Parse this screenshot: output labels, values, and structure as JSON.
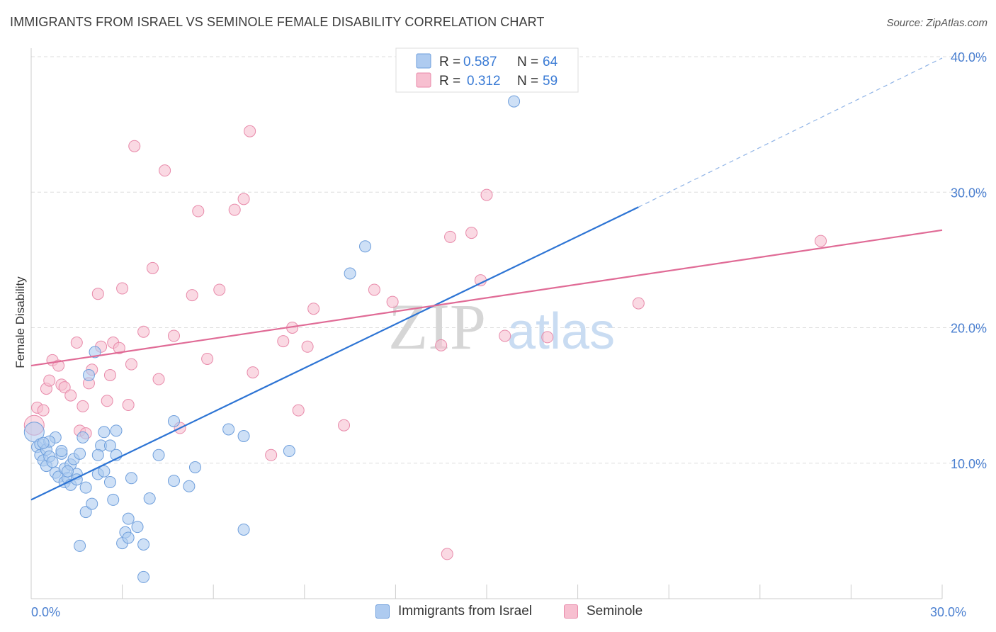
{
  "header": {
    "title": "IMMIGRANTS FROM ISRAEL VS SEMINOLE FEMALE DISABILITY CORRELATION CHART",
    "source": "Source: ZipAtlas.com"
  },
  "watermark": {
    "zip": "ZIP",
    "atlas": "atlas"
  },
  "colors": {
    "blue_fill": "#aecbf0",
    "blue_stroke": "#6f9fdc",
    "blue_line": "#2d74d4",
    "pink_fill": "#f7bfd0",
    "pink_stroke": "#e88aaa",
    "pink_line": "#e06b96",
    "axis_text": "#4a7fd0",
    "grid": "#dddddd"
  },
  "legend_top": {
    "rows": [
      {
        "r_label": "R =",
        "r_value": "0.587",
        "n_label": "N =",
        "n_value": "64"
      },
      {
        "r_label": "R =",
        "r_value": "0.312",
        "n_label": "N =",
        "n_value": "59"
      }
    ]
  },
  "chart_data": {
    "type": "scatter",
    "xlabel": "",
    "ylabel": "Female Disability",
    "xlim": [
      0,
      30
    ],
    "ylim": [
      0,
      40
    ],
    "x_tick_labels": [
      {
        "value": 0,
        "label": "0.0%"
      },
      {
        "value": 30,
        "label": "30.0%"
      }
    ],
    "y_tick_labels": [
      {
        "value": 10,
        "label": "10.0%"
      },
      {
        "value": 20,
        "label": "20.0%"
      },
      {
        "value": 30,
        "label": "30.0%"
      },
      {
        "value": 40,
        "label": "40.0%"
      }
    ],
    "grid": true,
    "legend_position": "top-center",
    "series": [
      {
        "name": "Immigrants from Israel",
        "color": "#aecbf0",
        "trend": {
          "x": [
            0,
            20
          ],
          "y": [
            7.3,
            28.9
          ],
          "dashed_to": {
            "x": 30,
            "y": 39.9
          }
        },
        "points": [
          [
            0.1,
            12.3
          ],
          [
            0.2,
            11.2
          ],
          [
            0.3,
            11.4
          ],
          [
            0.3,
            10.6
          ],
          [
            0.4,
            10.2
          ],
          [
            0.5,
            9.8
          ],
          [
            0.5,
            11.0
          ],
          [
            0.6,
            10.5
          ],
          [
            0.7,
            10.1
          ],
          [
            0.8,
            9.3
          ],
          [
            0.8,
            11.9
          ],
          [
            0.9,
            9.0
          ],
          [
            1.0,
            10.7
          ],
          [
            1.1,
            9.6
          ],
          [
            1.1,
            8.6
          ],
          [
            1.2,
            8.9
          ],
          [
            1.3,
            9.9
          ],
          [
            1.3,
            8.4
          ],
          [
            1.4,
            10.3
          ],
          [
            1.5,
            9.2
          ],
          [
            1.5,
            8.8
          ],
          [
            1.6,
            10.7
          ],
          [
            1.7,
            11.9
          ],
          [
            1.8,
            8.2
          ],
          [
            1.8,
            6.4
          ],
          [
            1.9,
            16.5
          ],
          [
            2.0,
            7.0
          ],
          [
            2.1,
            18.2
          ],
          [
            2.2,
            9.2
          ],
          [
            2.3,
            11.3
          ],
          [
            2.4,
            12.3
          ],
          [
            2.4,
            9.4
          ],
          [
            2.6,
            11.3
          ],
          [
            2.6,
            8.6
          ],
          [
            2.7,
            7.3
          ],
          [
            2.8,
            12.4
          ],
          [
            2.8,
            10.6
          ],
          [
            3.0,
            4.1
          ],
          [
            3.1,
            4.9
          ],
          [
            3.2,
            4.5
          ],
          [
            3.2,
            5.9
          ],
          [
            3.3,
            8.9
          ],
          [
            3.5,
            5.3
          ],
          [
            3.7,
            4.0
          ],
          [
            3.7,
            1.6
          ],
          [
            3.9,
            7.4
          ],
          [
            4.2,
            10.6
          ],
          [
            4.7,
            13.1
          ],
          [
            4.7,
            8.7
          ],
          [
            5.2,
            8.3
          ],
          [
            5.4,
            9.7
          ],
          [
            6.5,
            12.5
          ],
          [
            7.0,
            5.1
          ],
          [
            7.0,
            12.0
          ],
          [
            8.5,
            10.9
          ],
          [
            10.5,
            24.0
          ],
          [
            11.0,
            26.0
          ],
          [
            15.9,
            36.7
          ],
          [
            1.6,
            3.9
          ],
          [
            0.6,
            11.6
          ],
          [
            2.2,
            10.6
          ],
          [
            1.0,
            10.9
          ],
          [
            1.2,
            9.4
          ],
          [
            0.4,
            11.5
          ]
        ]
      },
      {
        "name": "Seminole",
        "color": "#f7bfd0",
        "trend": {
          "x": [
            0,
            30
          ],
          "y": [
            17.2,
            27.2
          ]
        },
        "points": [
          [
            0.1,
            12.8
          ],
          [
            0.2,
            14.1
          ],
          [
            0.4,
            13.9
          ],
          [
            0.5,
            15.5
          ],
          [
            0.6,
            16.1
          ],
          [
            0.7,
            17.6
          ],
          [
            0.9,
            17.2
          ],
          [
            1.0,
            15.8
          ],
          [
            1.1,
            15.6
          ],
          [
            1.3,
            15.0
          ],
          [
            1.5,
            18.9
          ],
          [
            1.6,
            12.4
          ],
          [
            1.7,
            14.2
          ],
          [
            1.8,
            12.2
          ],
          [
            1.9,
            15.9
          ],
          [
            2.0,
            16.9
          ],
          [
            2.2,
            22.5
          ],
          [
            2.3,
            18.6
          ],
          [
            2.5,
            14.6
          ],
          [
            2.6,
            16.5
          ],
          [
            2.7,
            18.9
          ],
          [
            2.9,
            18.5
          ],
          [
            3.0,
            22.9
          ],
          [
            3.2,
            14.3
          ],
          [
            3.3,
            17.3
          ],
          [
            3.4,
            33.4
          ],
          [
            3.7,
            19.7
          ],
          [
            4.0,
            24.4
          ],
          [
            4.2,
            16.2
          ],
          [
            4.4,
            31.6
          ],
          [
            4.7,
            19.4
          ],
          [
            4.9,
            12.6
          ],
          [
            5.3,
            22.4
          ],
          [
            5.5,
            28.6
          ],
          [
            5.8,
            17.7
          ],
          [
            6.2,
            22.8
          ],
          [
            6.7,
            28.7
          ],
          [
            7.0,
            29.5
          ],
          [
            7.2,
            34.5
          ],
          [
            7.3,
            16.7
          ],
          [
            7.9,
            10.6
          ],
          [
            8.3,
            19.0
          ],
          [
            8.6,
            20.0
          ],
          [
            8.8,
            13.9
          ],
          [
            9.1,
            18.6
          ],
          [
            9.3,
            21.4
          ],
          [
            10.3,
            12.8
          ],
          [
            11.3,
            22.8
          ],
          [
            11.9,
            21.9
          ],
          [
            13.5,
            18.7
          ],
          [
            13.7,
            3.3
          ],
          [
            13.8,
            26.7
          ],
          [
            14.5,
            27.0
          ],
          [
            14.8,
            23.5
          ],
          [
            15.0,
            29.8
          ],
          [
            15.6,
            19.4
          ],
          [
            17.0,
            19.3
          ],
          [
            20.0,
            21.8
          ],
          [
            26.0,
            26.4
          ]
        ]
      }
    ]
  }
}
